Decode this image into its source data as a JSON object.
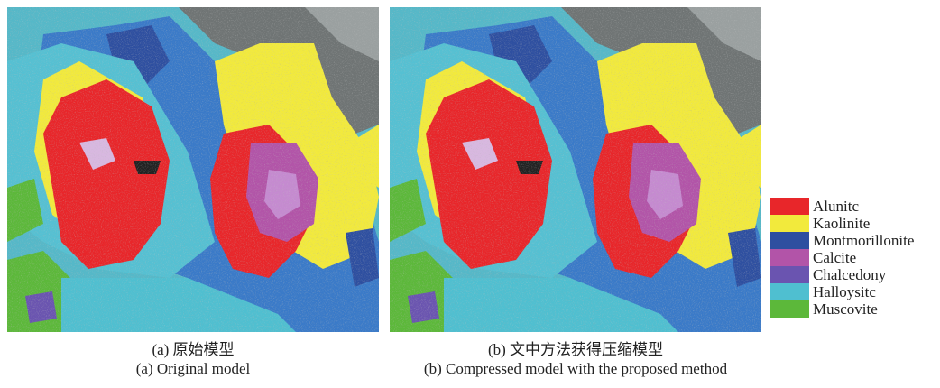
{
  "captions": {
    "a_cn": "(a) 原始模型",
    "a_en": "(a) Original model",
    "b_cn": "(b) 文中方法获得压缩模型",
    "b_en": "(b) Compressed model with the proposed method"
  },
  "legend": [
    {
      "label": "Alunitc",
      "color": "#e8262a"
    },
    {
      "label": "Kaolinite",
      "color": "#f2ea3c"
    },
    {
      "label": "Montmorillonite",
      "color": "#2e4fa0"
    },
    {
      "label": "Calcite",
      "color": "#b254a8"
    },
    {
      "label": "Chalcedony",
      "color": "#6a54b0"
    },
    {
      "label": "Halloysitc",
      "color": "#4fbfd0"
    },
    {
      "label": "Muscovite",
      "color": "#5cb83a"
    }
  ]
}
